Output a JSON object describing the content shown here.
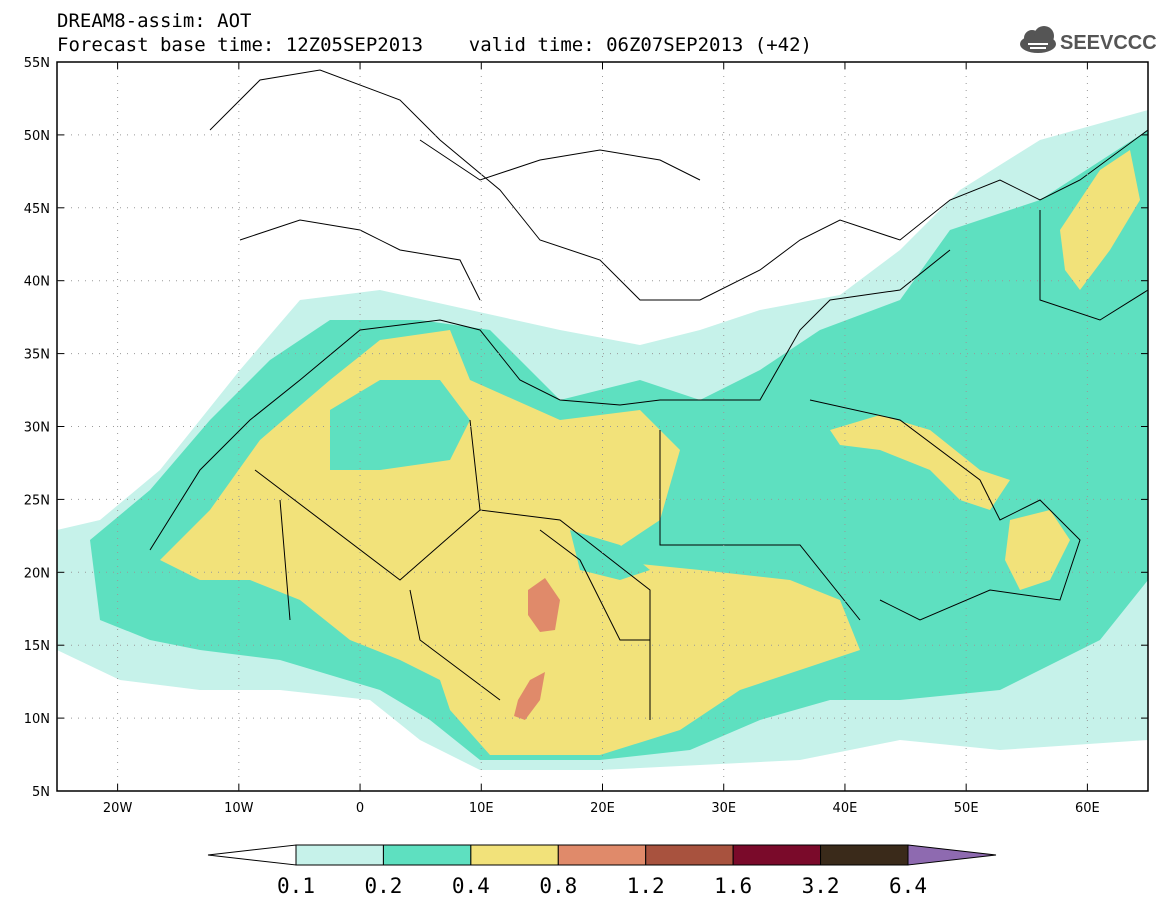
{
  "header": {
    "title": "DREAM8-assim: AOT",
    "base_time_line": "Forecast base time: 12Z05SEP2013    valid time: 06Z07SEP2013 (+42)"
  },
  "logo": {
    "text": "SEEVCCC",
    "icon": "cloud-icon"
  },
  "map": {
    "lon_range": [
      -25,
      65
    ],
    "lat_range": [
      5,
      55
    ],
    "x_ticks": [
      "20W",
      "10W",
      "0",
      "10E",
      "20E",
      "30E",
      "40E",
      "50E",
      "60E"
    ],
    "y_ticks": [
      "55N",
      "50N",
      "45N",
      "40N",
      "35N",
      "30N",
      "25N",
      "20N",
      "15N",
      "10N",
      "5N"
    ]
  },
  "colorbar": {
    "labels": [
      "0.1",
      "0.2",
      "0.4",
      "0.8",
      "1.2",
      "1.6",
      "3.2",
      "6.4"
    ],
    "colors": [
      "#ffffff",
      "#c6f2ea",
      "#5ee0c0",
      "#f2e27a",
      "#e08a6a",
      "#a8523e",
      "#7a0a2a",
      "#3a2a1a",
      "#8e6ab0"
    ]
  }
}
